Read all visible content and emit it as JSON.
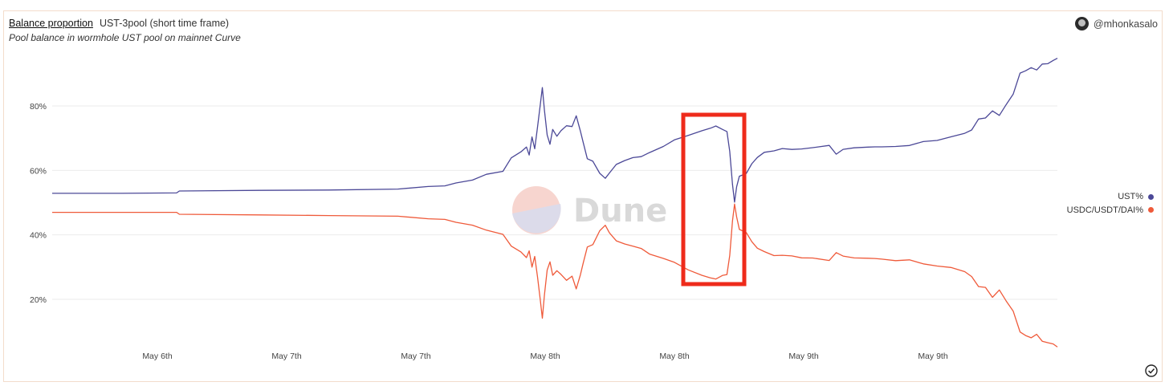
{
  "header": {
    "title": "Balance proportion",
    "title_sub": "UST-3pool (short time frame)",
    "subtitle": "Pool balance in wormhole UST pool on mainnet Curve",
    "author": "@mhonkasalo"
  },
  "watermark": "Dune",
  "colors": {
    "ust": "#4b4897",
    "usdc": "#ef5a3a",
    "highlight": "#ee2b1b",
    "grid": "#ebebeb",
    "frame": "#f3dccb"
  },
  "chart_data": {
    "type": "line",
    "xlabel": "",
    "ylabel": "",
    "ylim": [
      0,
      100
    ],
    "y_ticks": [
      "20%",
      "40%",
      "60%",
      "80%"
    ],
    "x_ticks": [
      "May 6th",
      "May 7th",
      "May 7th",
      "May 8th",
      "May 8th",
      "May 9th",
      "May 9th"
    ],
    "legend": "right",
    "x_range_days": [
      0,
      3.1
    ],
    "series": [
      {
        "name": "UST%",
        "color": "#4b4897",
        "points": [
          [
            0.0,
            52.9
          ],
          [
            0.5,
            52.9
          ],
          [
            0.9,
            53.0
          ],
          [
            0.92,
            53.6
          ],
          [
            1.5,
            53.8
          ],
          [
            2.0,
            53.9
          ],
          [
            2.5,
            54.2
          ],
          [
            2.72,
            55.0
          ],
          [
            2.84,
            55.2
          ],
          [
            2.92,
            56.1
          ],
          [
            3.04,
            57.0
          ],
          [
            3.14,
            58.9
          ],
          [
            3.26,
            60.2
          ],
          [
            3.3,
            62.5
          ],
          [
            3.32,
            64.0
          ],
          [
            3.39,
            65.5
          ],
          [
            3.43,
            66.7
          ],
          [
            3.45,
            64.5
          ],
          [
            3.47,
            70.0
          ],
          [
            3.49,
            66.5
          ],
          [
            3.51,
            73.0
          ],
          [
            3.53,
            80.0
          ],
          [
            3.545,
            85.3
          ],
          [
            3.56,
            79.0
          ],
          [
            3.58,
            71.5
          ],
          [
            3.6,
            68.5
          ],
          [
            3.62,
            73.0
          ],
          [
            3.65,
            71.2
          ],
          [
            3.68,
            72.8
          ],
          [
            3.72,
            74.2
          ],
          [
            3.76,
            73.0
          ],
          [
            3.79,
            76.5
          ],
          [
            3.82,
            72.0
          ],
          [
            3.84,
            68.5
          ],
          [
            3.87,
            63.5
          ],
          [
            3.91,
            62.5
          ],
          [
            3.96,
            58.5
          ],
          [
            4.0,
            57.0
          ],
          [
            4.03,
            59.5
          ],
          [
            4.08,
            62.0
          ],
          [
            4.14,
            63.3
          ],
          [
            4.2,
            64.0
          ],
          [
            4.26,
            64.6
          ],
          [
            4.32,
            66.0
          ],
          [
            4.42,
            67.6
          ],
          [
            4.5,
            69.0
          ],
          [
            4.6,
            70.7
          ],
          [
            4.7,
            72.0
          ],
          [
            4.76,
            73.0
          ],
          [
            4.8,
            73.7
          ],
          [
            4.85,
            72.5
          ],
          [
            4.88,
            72.0
          ],
          [
            4.9,
            66.0
          ],
          [
            4.92,
            56.0
          ],
          [
            4.935,
            50.5
          ],
          [
            4.95,
            55.0
          ],
          [
            4.97,
            58.5
          ],
          [
            5.02,
            59.5
          ],
          [
            5.06,
            62.5
          ],
          [
            5.1,
            64.5
          ],
          [
            5.15,
            65.5
          ],
          [
            5.22,
            66.0
          ],
          [
            5.28,
            66.3
          ],
          [
            5.35,
            66.5
          ],
          [
            5.42,
            66.6
          ],
          [
            5.5,
            67.0
          ],
          [
            5.62,
            67.4
          ],
          [
            5.67,
            65.5
          ],
          [
            5.72,
            66.9
          ],
          [
            5.8,
            67.4
          ],
          [
            5.9,
            67.6
          ],
          [
            5.95,
            67.6
          ],
          [
            6.0,
            67.8
          ],
          [
            6.1,
            68.0
          ],
          [
            6.2,
            68.2
          ],
          [
            6.3,
            68.6
          ],
          [
            6.4,
            69.2
          ],
          [
            6.5,
            70.0
          ],
          [
            6.6,
            71.4
          ],
          [
            6.65,
            72.5
          ],
          [
            6.7,
            75.5
          ],
          [
            6.75,
            76.0
          ],
          [
            6.8,
            79.0
          ],
          [
            6.85,
            77.5
          ],
          [
            6.9,
            81.0
          ],
          [
            6.95,
            84.0
          ],
          [
            7.0,
            90.5
          ],
          [
            7.04,
            91.3
          ],
          [
            7.08,
            92.2
          ],
          [
            7.12,
            91.2
          ],
          [
            7.16,
            92.5
          ],
          [
            7.2,
            93.0
          ],
          [
            7.24,
            93.8
          ],
          [
            7.27,
            94.8
          ]
        ]
      },
      {
        "name": "USDC/USDT/DAI%",
        "color": "#ef5a3a",
        "points": [
          [
            0.0,
            47.0
          ],
          [
            0.5,
            47.0
          ],
          [
            0.9,
            47.0
          ],
          [
            0.92,
            46.4
          ],
          [
            1.5,
            46.2
          ],
          [
            2.0,
            46.0
          ],
          [
            2.5,
            45.8
          ],
          [
            2.72,
            45.0
          ],
          [
            2.84,
            44.8
          ],
          [
            2.92,
            43.9
          ],
          [
            3.04,
            43.0
          ],
          [
            3.14,
            41.1
          ],
          [
            3.26,
            39.8
          ],
          [
            3.3,
            37.5
          ],
          [
            3.32,
            36.0
          ],
          [
            3.39,
            34.5
          ],
          [
            3.43,
            33.3
          ],
          [
            3.45,
            35.5
          ],
          [
            3.47,
            30.0
          ],
          [
            3.49,
            33.5
          ],
          [
            3.51,
            27.0
          ],
          [
            3.53,
            20.0
          ],
          [
            3.545,
            14.7
          ],
          [
            3.56,
            21.0
          ],
          [
            3.58,
            28.5
          ],
          [
            3.6,
            31.5
          ],
          [
            3.62,
            27.0
          ],
          [
            3.65,
            28.8
          ],
          [
            3.68,
            27.2
          ],
          [
            3.72,
            25.8
          ],
          [
            3.76,
            27.0
          ],
          [
            3.79,
            23.5
          ],
          [
            3.82,
            28.0
          ],
          [
            3.84,
            31.5
          ],
          [
            3.87,
            36.5
          ],
          [
            3.91,
            37.5
          ],
          [
            3.96,
            41.5
          ],
          [
            4.0,
            43.0
          ],
          [
            4.03,
            40.5
          ],
          [
            4.08,
            38.0
          ],
          [
            4.14,
            36.7
          ],
          [
            4.2,
            36.0
          ],
          [
            4.26,
            35.4
          ],
          [
            4.32,
            34.0
          ],
          [
            4.42,
            32.4
          ],
          [
            4.5,
            31.0
          ],
          [
            4.6,
            29.3
          ],
          [
            4.7,
            28.0
          ],
          [
            4.76,
            27.0
          ],
          [
            4.8,
            26.3
          ],
          [
            4.85,
            27.5
          ],
          [
            4.88,
            28.0
          ],
          [
            4.9,
            34.0
          ],
          [
            4.92,
            44.0
          ],
          [
            4.935,
            49.5
          ],
          [
            4.95,
            45.0
          ],
          [
            4.97,
            41.5
          ],
          [
            5.02,
            40.5
          ],
          [
            5.06,
            37.5
          ],
          [
            5.1,
            35.5
          ],
          [
            5.15,
            34.5
          ],
          [
            5.22,
            34.0
          ],
          [
            5.28,
            33.7
          ],
          [
            5.35,
            33.5
          ],
          [
            5.42,
            33.4
          ],
          [
            5.5,
            33.0
          ],
          [
            5.62,
            32.6
          ],
          [
            5.67,
            34.5
          ],
          [
            5.72,
            33.1
          ],
          [
            5.8,
            32.6
          ],
          [
            5.9,
            32.4
          ],
          [
            5.95,
            32.4
          ],
          [
            6.0,
            32.2
          ],
          [
            6.1,
            32.0
          ],
          [
            6.2,
            31.8
          ],
          [
            6.3,
            31.4
          ],
          [
            6.4,
            30.8
          ],
          [
            6.5,
            30.0
          ],
          [
            6.6,
            28.6
          ],
          [
            6.65,
            27.5
          ],
          [
            6.7,
            24.5
          ],
          [
            6.75,
            24.0
          ],
          [
            6.8,
            21.0
          ],
          [
            6.85,
            22.5
          ],
          [
            6.9,
            19.0
          ],
          [
            6.95,
            16.0
          ],
          [
            7.0,
            9.5
          ],
          [
            7.04,
            8.7
          ],
          [
            7.08,
            7.8
          ],
          [
            7.12,
            8.8
          ],
          [
            7.16,
            7.5
          ],
          [
            7.2,
            7.0
          ],
          [
            7.24,
            6.2
          ],
          [
            7.27,
            5.2
          ]
        ]
      }
    ]
  }
}
